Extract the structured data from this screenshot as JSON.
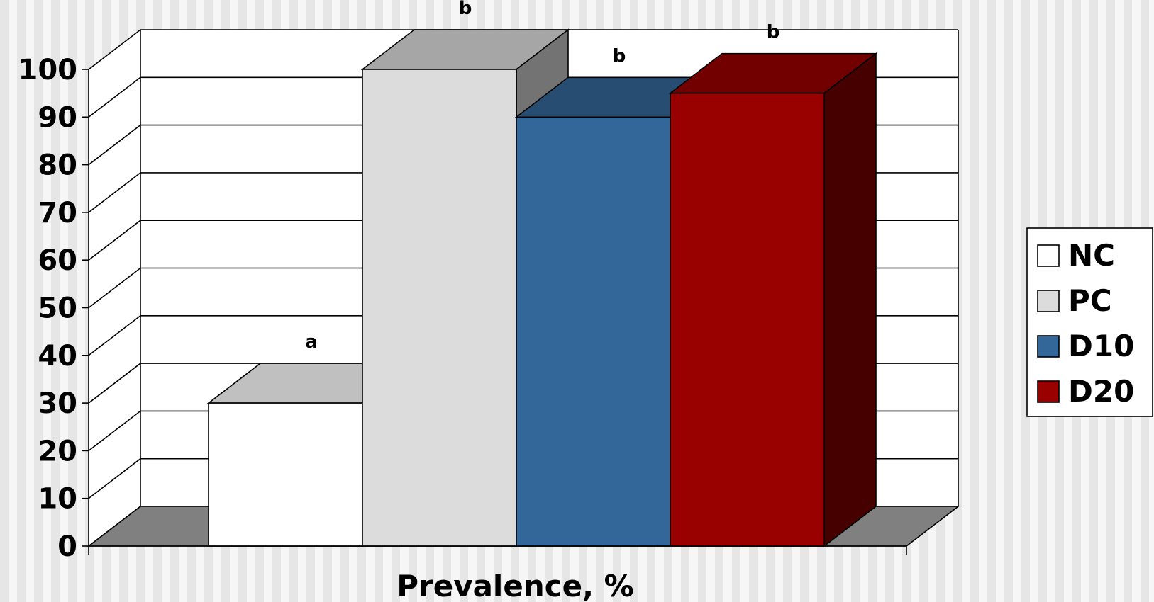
{
  "chart_data": {
    "type": "bar",
    "xlabel": "Prevalence, %",
    "ylabel": "",
    "ylim": [
      0,
      100
    ],
    "yticks": [
      0,
      10,
      20,
      30,
      40,
      50,
      60,
      70,
      80,
      90,
      100
    ],
    "grid": true,
    "legend_position": "right",
    "series": [
      {
        "name": "NC",
        "value": 30,
        "label": "a",
        "color": "#ffffff",
        "top_color": "#c0c0c0",
        "side_color": "#9a9a9a"
      },
      {
        "name": "PC",
        "value": 100,
        "label": "b",
        "color": "#dcdcdc",
        "top_color": "#a6a6a6",
        "side_color": "#737373"
      },
      {
        "name": "D10",
        "value": 90,
        "label": "b",
        "color": "#336699",
        "top_color": "#274d73",
        "side_color": "#1c3a57"
      },
      {
        "name": "D20",
        "value": 95,
        "label": "b",
        "color": "#990000",
        "top_color": "#730000",
        "side_color": "#470000"
      }
    ]
  }
}
